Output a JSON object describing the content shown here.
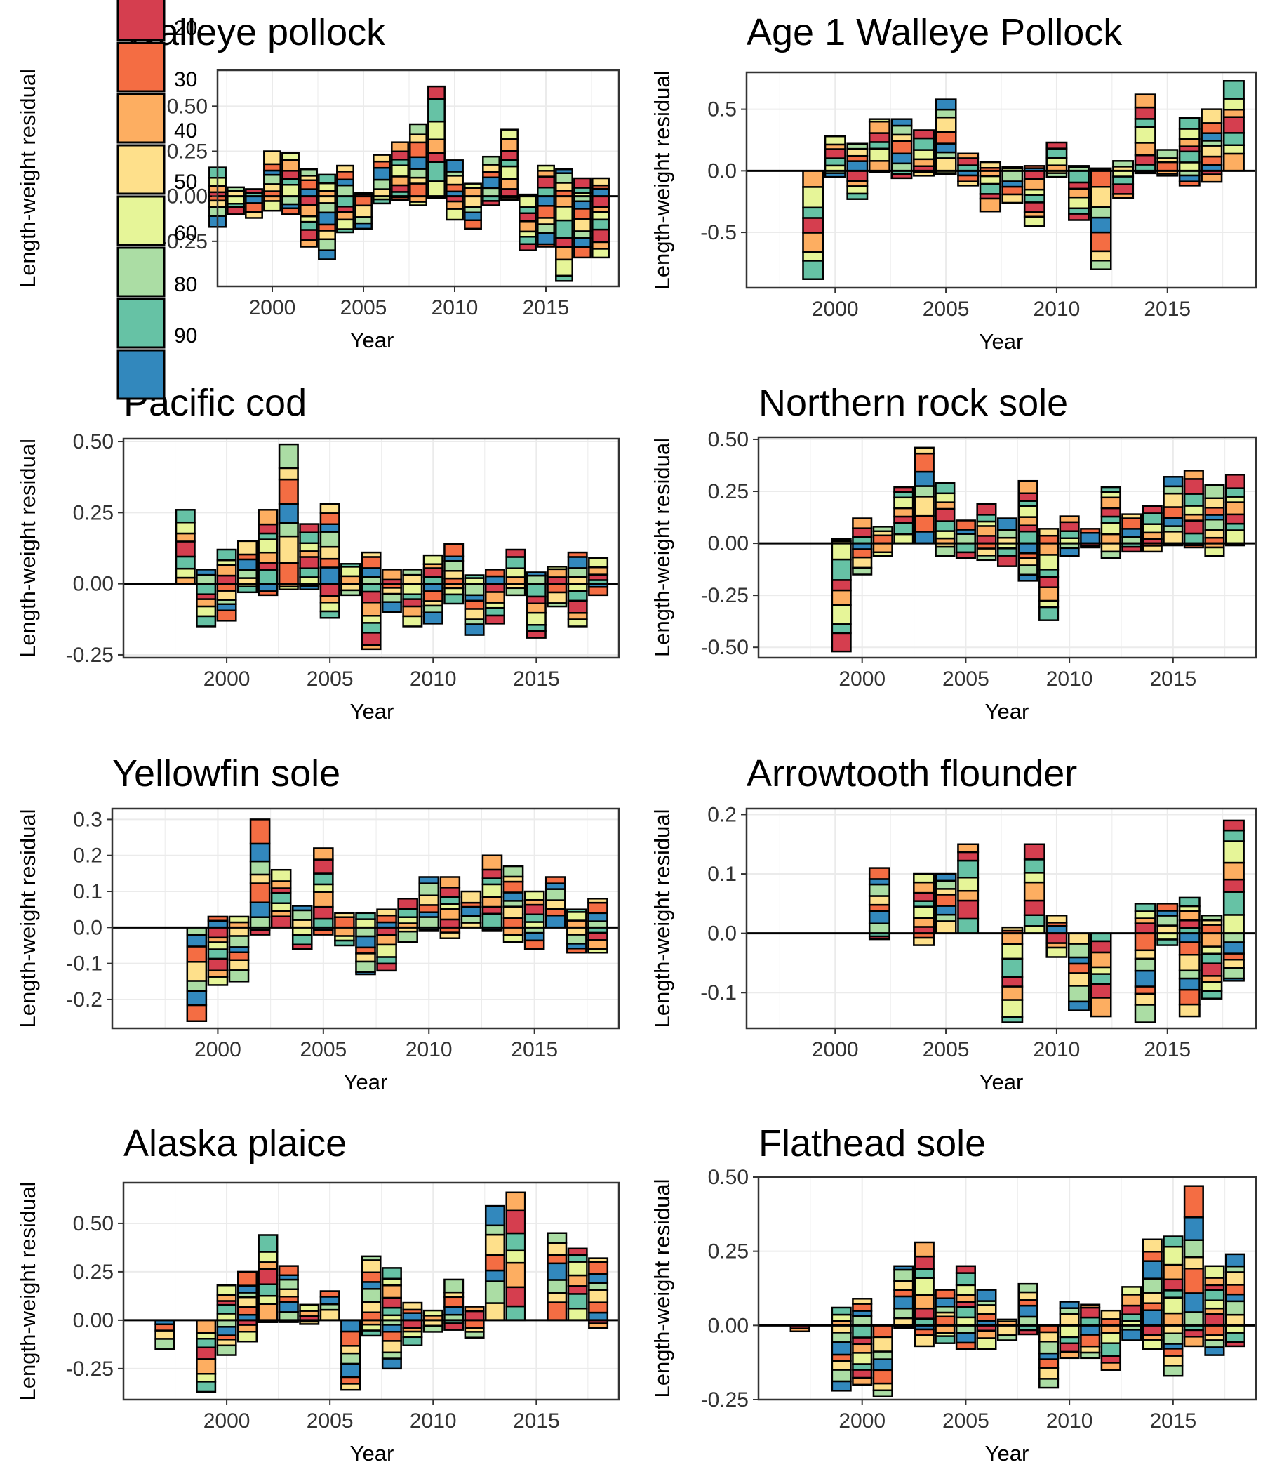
{
  "legend": {
    "entries": [
      {
        "label": "20",
        "color": "#D53E4F"
      },
      {
        "label": "30",
        "color": "#F46D43"
      },
      {
        "label": "40",
        "color": "#FDAE61"
      },
      {
        "label": "50",
        "color": "#FEE08B"
      },
      {
        "label": "60",
        "color": "#E6F598"
      },
      {
        "label": "80",
        "color": "#ABDDA4"
      },
      {
        "label": "90",
        "color": "#66C2A5"
      },
      {
        "label": "",
        "color": "#3288BD"
      }
    ]
  },
  "chart_data": [
    {
      "type": "bar",
      "stacked": true,
      "title": "Walleye pollock",
      "xlabel": "Year",
      "ylabel": "Length-weight residual",
      "xlim": [
        1997,
        2019
      ],
      "ylim": [
        -0.5,
        0.7
      ],
      "xticks": [
        "2000",
        "2005",
        "2010",
        "2015"
      ],
      "yticks": [
        "0.50",
        "0.25",
        "0.00",
        "-0.25"
      ],
      "grid": true,
      "legend": "left",
      "x": [
        1997,
        1998,
        1999,
        2000,
        2001,
        2002,
        2003,
        2004,
        2005,
        2006,
        2007,
        2008,
        2009,
        2010,
        2011,
        2012,
        2013,
        2014,
        2015,
        2016,
        2017,
        2018
      ],
      "pos": [
        0.16,
        0.05,
        0.04,
        0.25,
        0.24,
        0.15,
        0.12,
        0.17,
        0.02,
        0.23,
        0.3,
        0.4,
        0.61,
        0.2,
        0.07,
        0.22,
        0.37,
        0.01,
        0.17,
        0.15,
        0.1,
        0.1
      ],
      "neg": [
        -0.17,
        -0.1,
        -0.12,
        -0.08,
        -0.1,
        -0.28,
        -0.35,
        -0.2,
        -0.18,
        -0.04,
        -0.02,
        -0.05,
        -0.01,
        -0.13,
        -0.18,
        -0.05,
        -0.02,
        -0.3,
        -0.28,
        -0.47,
        -0.34,
        -0.34
      ]
    },
    {
      "type": "bar",
      "stacked": true,
      "title": "Age 1 Walleye Pollock",
      "xlabel": "Year",
      "ylabel": "Length-weight residual",
      "xlim": [
        1996,
        2019
      ],
      "ylim": [
        -0.95,
        0.8
      ],
      "xticks": [
        "2000",
        "2005",
        "2010",
        "2015"
      ],
      "yticks": [
        "0.5",
        "0.0",
        "-0.5"
      ],
      "grid": true,
      "x": [
        1999,
        2000,
        2001,
        2002,
        2003,
        2004,
        2005,
        2006,
        2007,
        2008,
        2009,
        2010,
        2011,
        2012,
        2013,
        2014,
        2015,
        2016,
        2017,
        2018
      ],
      "pos": [
        0.0,
        0.28,
        0.22,
        0.42,
        0.42,
        0.33,
        0.58,
        0.14,
        0.07,
        0.03,
        0.04,
        0.23,
        0.04,
        0.02,
        0.08,
        0.62,
        0.17,
        0.43,
        0.5,
        0.73
      ],
      "neg": [
        -0.88,
        -0.05,
        -0.23,
        -0.01,
        -0.06,
        -0.04,
        -0.03,
        -0.12,
        -0.33,
        -0.26,
        -0.45,
        -0.05,
        -0.4,
        -0.8,
        -0.22,
        -0.02,
        -0.04,
        -0.12,
        -0.09,
        0.0
      ]
    },
    {
      "type": "bar",
      "stacked": true,
      "title": "Pacific cod",
      "xlabel": "Year",
      "ylabel": "Length-weight residual",
      "xlim": [
        1995,
        2019
      ],
      "ylim": [
        -0.26,
        0.51
      ],
      "xticks": [
        "2000",
        "2005",
        "2010",
        "2015"
      ],
      "yticks": [
        "0.50",
        "0.25",
        "0.00",
        "-0.25"
      ],
      "grid": true,
      "x": [
        1998,
        1999,
        2000,
        2001,
        2002,
        2003,
        2004,
        2005,
        2006,
        2007,
        2008,
        2009,
        2010,
        2011,
        2012,
        2013,
        2014,
        2015,
        2016,
        2017,
        2018
      ],
      "pos": [
        0.26,
        0.05,
        0.12,
        0.15,
        0.26,
        0.49,
        0.21,
        0.28,
        0.07,
        0.11,
        0.05,
        0.05,
        0.1,
        0.14,
        0.03,
        0.05,
        0.12,
        0.04,
        0.06,
        0.11,
        0.09
      ],
      "neg": [
        0.0,
        -0.15,
        -0.13,
        -0.03,
        -0.04,
        -0.02,
        -0.02,
        -0.12,
        -0.04,
        -0.23,
        -0.1,
        -0.15,
        -0.14,
        -0.07,
        -0.18,
        -0.14,
        -0.04,
        -0.19,
        -0.08,
        -0.15,
        -0.04
      ]
    },
    {
      "type": "bar",
      "stacked": true,
      "title": "Northern rock sole",
      "xlabel": "Year",
      "ylabel": "Length-weight residual",
      "xlim": [
        1995,
        2019
      ],
      "ylim": [
        -0.55,
        0.51
      ],
      "xticks": [
        "2000",
        "2005",
        "2010",
        "2015"
      ],
      "yticks": [
        "0.50",
        "0.25",
        "0.00",
        "-0.25",
        "-0.50"
      ],
      "grid": true,
      "x": [
        1999,
        2000,
        2001,
        2002,
        2003,
        2004,
        2005,
        2006,
        2007,
        2008,
        2009,
        2010,
        2011,
        2012,
        2013,
        2014,
        2015,
        2016,
        2017,
        2018
      ],
      "pos": [
        0.02,
        0.12,
        0.08,
        0.27,
        0.46,
        0.29,
        0.11,
        0.19,
        0.12,
        0.3,
        0.07,
        0.13,
        0.07,
        0.27,
        0.14,
        0.18,
        0.32,
        0.35,
        0.28,
        0.33
      ],
      "neg": [
        -0.52,
        -0.15,
        -0.06,
        0.0,
        0.0,
        -0.06,
        -0.07,
        -0.08,
        -0.11,
        -0.18,
        -0.37,
        -0.06,
        -0.02,
        -0.07,
        -0.04,
        -0.04,
        -0.01,
        -0.02,
        -0.06,
        -0.01
      ]
    },
    {
      "type": "bar",
      "stacked": true,
      "title": "Yellowfin sole",
      "xlabel": "Year",
      "ylabel": "Length-weight residual",
      "xlim": [
        1995,
        2019
      ],
      "ylim": [
        -0.28,
        0.33
      ],
      "xticks": [
        "2000",
        "2005",
        "2010",
        "2015"
      ],
      "yticks": [
        "0.3",
        "0.2",
        "0.1",
        "0.0",
        "-0.1",
        "-0.2"
      ],
      "grid": true,
      "x": [
        1999,
        2000,
        2001,
        2002,
        2003,
        2004,
        2005,
        2006,
        2007,
        2008,
        2009,
        2010,
        2011,
        2012,
        2013,
        2014,
        2015,
        2016,
        2017,
        2018
      ],
      "pos": [
        0.0,
        0.03,
        0.03,
        0.3,
        0.16,
        0.06,
        0.22,
        0.04,
        0.04,
        0.05,
        0.08,
        0.14,
        0.14,
        0.1,
        0.2,
        0.17,
        0.1,
        0.14,
        0.05,
        0.08
      ],
      "neg": [
        -0.26,
        -0.16,
        -0.15,
        -0.02,
        0.0,
        -0.06,
        -0.02,
        -0.05,
        -0.13,
        -0.12,
        -0.04,
        -0.01,
        -0.03,
        0.0,
        -0.01,
        -0.04,
        -0.06,
        0.0,
        -0.07,
        -0.07
      ]
    },
    {
      "type": "bar",
      "stacked": true,
      "title": "Arrowtooth flounder",
      "xlabel": "Year",
      "ylabel": "Length-weight residual",
      "xlim": [
        1996,
        2019
      ],
      "ylim": [
        -0.16,
        0.21
      ],
      "xticks": [
        "2000",
        "2005",
        "2010",
        "2015"
      ],
      "yticks": [
        "0.2",
        "0.1",
        "0.0",
        "-0.1"
      ],
      "grid": true,
      "x": [
        2002,
        2004,
        2005,
        2006,
        2008,
        2009,
        2010,
        2011,
        2012,
        2014,
        2015,
        2016,
        2017,
        2018
      ],
      "pos": [
        0.11,
        0.1,
        0.1,
        0.15,
        0.01,
        0.15,
        0.03,
        0.0,
        0.0,
        0.05,
        0.05,
        0.06,
        0.03,
        0.19
      ],
      "neg": [
        -0.01,
        -0.02,
        0.0,
        0.0,
        -0.15,
        0.0,
        -0.04,
        -0.13,
        -0.14,
        -0.15,
        -0.02,
        -0.14,
        -0.11,
        -0.08
      ]
    },
    {
      "type": "bar",
      "stacked": true,
      "title": "Alaska plaice",
      "xlabel": "Year",
      "ylabel": "Length-weight residual",
      "xlim": [
        1995,
        2019
      ],
      "ylim": [
        -0.41,
        0.71
      ],
      "xticks": [
        "2000",
        "2005",
        "2010",
        "2015"
      ],
      "yticks": [
        "0.50",
        "0.25",
        "0.00",
        "-0.25"
      ],
      "grid": true,
      "x": [
        1997,
        1999,
        2000,
        2001,
        2002,
        2003,
        2004,
        2005,
        2006,
        2007,
        2008,
        2009,
        2010,
        2011,
        2012,
        2013,
        2014,
        2016,
        2017,
        2018
      ],
      "pos": [
        0.0,
        0.0,
        0.18,
        0.25,
        0.44,
        0.28,
        0.08,
        0.15,
        0.0,
        0.33,
        0.27,
        0.09,
        0.05,
        0.21,
        0.07,
        0.59,
        0.66,
        0.45,
        0.37,
        0.32
      ],
      "neg": [
        -0.15,
        -0.37,
        -0.18,
        -0.11,
        -0.01,
        -0.01,
        -0.02,
        0.0,
        -0.36,
        -0.08,
        -0.25,
        -0.13,
        -0.06,
        -0.05,
        -0.09,
        0.0,
        0.0,
        0.0,
        0.0,
        -0.04
      ]
    },
    {
      "type": "bar",
      "stacked": true,
      "title": "Flathead sole",
      "xlabel": "Year",
      "ylabel": "Length-weight residual",
      "xlim": [
        1995,
        2019
      ],
      "ylim": [
        -0.25,
        0.5
      ],
      "xticks": [
        "2000",
        "2005",
        "2010",
        "2015"
      ],
      "yticks": [
        "0.50",
        "0.25",
        "0.00",
        "-0.25"
      ],
      "grid": true,
      "x": [
        1997,
        1999,
        2000,
        2001,
        2002,
        2003,
        2004,
        2005,
        2006,
        2007,
        2008,
        2009,
        2010,
        2011,
        2012,
        2013,
        2014,
        2015,
        2016,
        2017,
        2018
      ],
      "pos": [
        0.0,
        0.06,
        0.09,
        0.0,
        0.2,
        0.28,
        0.12,
        0.2,
        0.12,
        0.02,
        0.14,
        0.0,
        0.08,
        0.07,
        0.05,
        0.13,
        0.29,
        0.3,
        0.47,
        0.2,
        0.24
      ],
      "neg": [
        -0.02,
        -0.22,
        -0.2,
        -0.24,
        -0.01,
        -0.07,
        -0.06,
        -0.08,
        -0.08,
        -0.05,
        -0.03,
        -0.21,
        -0.11,
        -0.11,
        -0.15,
        -0.05,
        -0.08,
        -0.17,
        -0.07,
        -0.1,
        -0.07
      ]
    }
  ]
}
